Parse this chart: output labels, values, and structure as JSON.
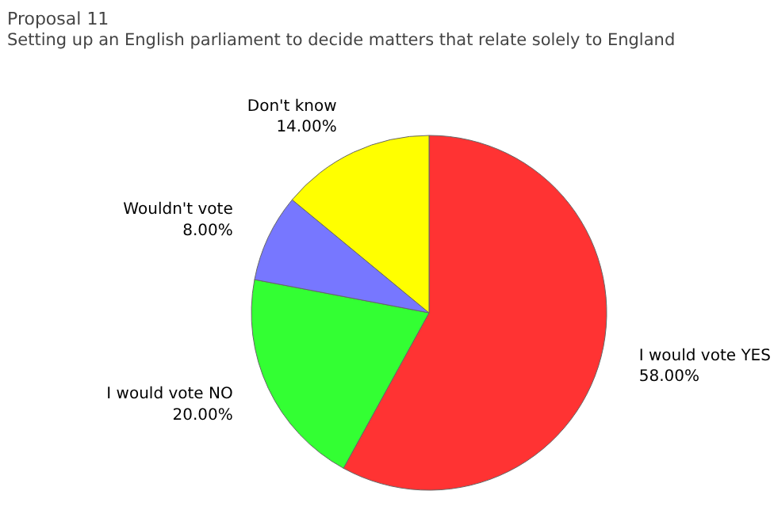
{
  "chart_data": {
    "type": "pie",
    "title": "Proposal 11",
    "subtitle": "Setting up an English parliament to decide matters that relate solely to England",
    "categories": [
      "I would vote YES",
      "I would vote NO",
      "Wouldn't vote",
      "Don't know"
    ],
    "values": [
      58,
      20,
      8,
      14
    ],
    "colors": [
      "#ff3333",
      "#33ff33",
      "#7777ff",
      "#ffff00"
    ],
    "value_labels": [
      "58.00%",
      "20.00%",
      "8.00%",
      "14.00%"
    ]
  }
}
